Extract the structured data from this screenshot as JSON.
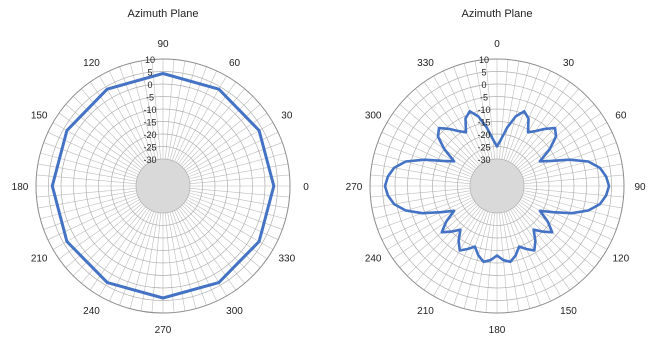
{
  "chart_data": [
    {
      "type": "polar-line",
      "title": "Azimuth Plane",
      "r_min": -30,
      "r_max": 10,
      "r_ticks": [
        10,
        5,
        0,
        -5,
        -10,
        -15,
        -20,
        -25,
        -30
      ],
      "angle_labels": [
        "90",
        "60",
        "30",
        "0",
        "330",
        "300",
        "270",
        "240",
        "210",
        "180",
        "150",
        "120"
      ],
      "rotation_offset_deg": 90,
      "direction": "clockwise",
      "line_color": "#4472C4",
      "grid": true,
      "series": [
        {
          "angles": [
            0,
            30,
            60,
            90,
            120,
            150,
            180,
            210,
            240,
            270,
            300,
            330
          ],
          "values": [
            3.5,
            3.6,
            3.8,
            4.0,
            3.8,
            3.6,
            3.5,
            3.6,
            3.9,
            4.2,
            3.9,
            3.6
          ]
        }
      ]
    },
    {
      "type": "polar-line",
      "title": "Azimuth Plane",
      "r_min": -30,
      "r_max": 10,
      "r_ticks": [
        10,
        5,
        0,
        -5,
        -10,
        -15,
        -20,
        -25,
        -30
      ],
      "angle_labels": [
        "0",
        "30",
        "60",
        "90",
        "120",
        "150",
        "180",
        "210",
        "240",
        "270",
        "300",
        "330"
      ],
      "rotation_offset_deg": 0,
      "direction": "clockwise",
      "line_color": "#4472C4",
      "grid": true,
      "series": [
        {
          "angles": [
            0,
            5,
            10,
            15,
            20,
            25,
            30,
            35,
            40,
            45,
            50,
            55,
            60,
            65,
            70,
            75,
            80,
            85,
            90,
            95,
            100,
            105,
            110,
            115,
            120,
            125,
            130,
            135,
            140,
            145,
            150,
            155,
            160,
            165,
            170,
            175,
            180,
            185,
            190,
            195,
            200,
            205,
            210,
            215,
            220,
            225,
            230,
            235,
            240,
            245,
            250,
            255,
            260,
            265,
            270,
            275,
            280,
            285,
            290,
            295,
            300,
            305,
            310,
            315,
            320,
            325,
            330,
            335,
            340,
            345,
            350,
            355
          ],
          "values": [
            -25,
            -22,
            -17,
            -12,
            -9,
            -11,
            -16,
            -14,
            -11,
            -8,
            -10,
            -15,
            -21,
            -17,
            -10,
            -3,
            1,
            3,
            4,
            3,
            1,
            -3,
            -9,
            -16,
            -21,
            -16,
            -12,
            -15,
            -18,
            -14,
            -11,
            -13,
            -15,
            -12,
            -10,
            -11,
            -13,
            -11,
            -10,
            -12,
            -15,
            -13,
            -11,
            -14,
            -18,
            -15,
            -12,
            -16,
            -21,
            -16,
            -9,
            -3,
            1,
            3,
            4,
            3,
            1,
            -3,
            -10,
            -17,
            -21,
            -15,
            -10,
            -8,
            -11,
            -14,
            -16,
            -11,
            -9,
            -12,
            -17,
            -22
          ]
        }
      ]
    }
  ]
}
